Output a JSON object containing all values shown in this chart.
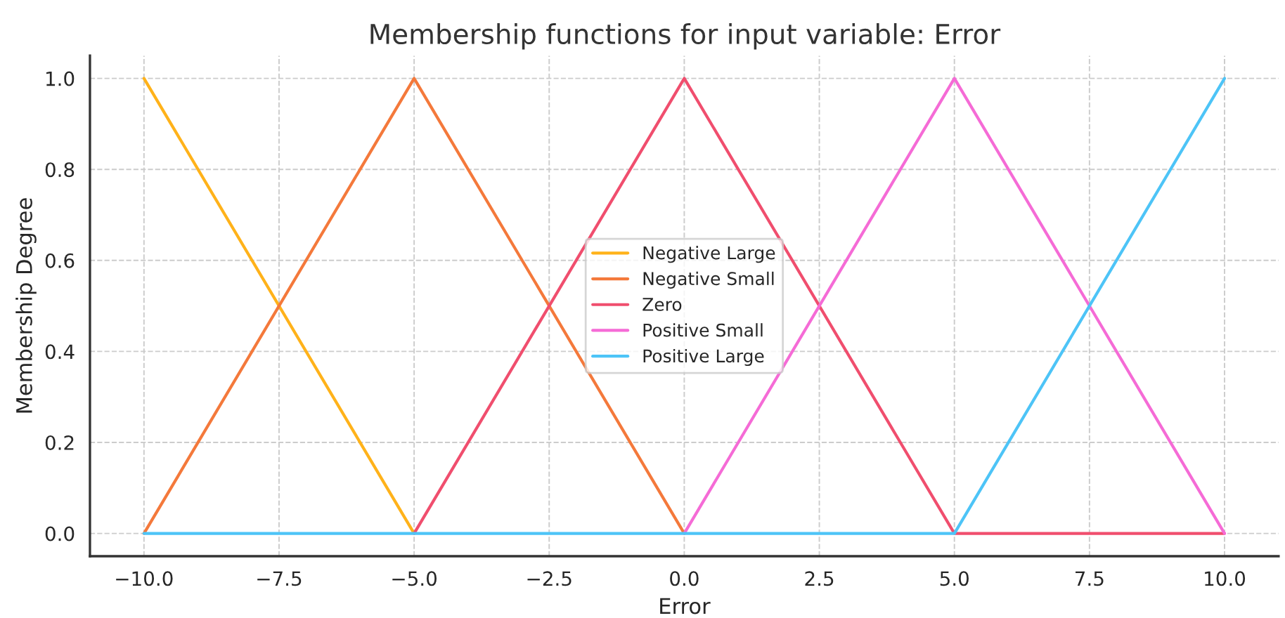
{
  "chart_data": {
    "type": "line",
    "title": "Membership functions for input variable: Error",
    "xlabel": "Error",
    "ylabel": "Membership Degree",
    "x": [
      -10,
      -5,
      0,
      5,
      10
    ],
    "series": [
      {
        "name": "Negative Large",
        "color": "#ffb21a",
        "values": [
          1,
          0,
          null,
          null,
          null
        ]
      },
      {
        "name": "Negative Small",
        "color": "#f4793b",
        "values": [
          0,
          1,
          0,
          null,
          null
        ]
      },
      {
        "name": "Zero",
        "color": "#f04e6e",
        "values": [
          null,
          0,
          1,
          0,
          0
        ]
      },
      {
        "name": "Positive Small",
        "color": "#f56bd6",
        "values": [
          null,
          null,
          0,
          1,
          0
        ]
      },
      {
        "name": "Positive Large",
        "color": "#4dc4f7",
        "values": [
          0,
          0,
          0,
          0,
          1
        ]
      }
    ],
    "xlim": [
      -11,
      11
    ],
    "xticks": [
      {
        "value": -10,
        "label": "−10.0"
      },
      {
        "value": -7.5,
        "label": "−7.5"
      },
      {
        "value": -5,
        "label": "−5.0"
      },
      {
        "value": -2.5,
        "label": "−2.5"
      },
      {
        "value": 0,
        "label": "0.0"
      },
      {
        "value": 2.5,
        "label": "2.5"
      },
      {
        "value": 5,
        "label": "5.0"
      },
      {
        "value": 7.5,
        "label": "7.5"
      },
      {
        "value": 10,
        "label": "10.0"
      }
    ],
    "ylim": [
      -0.05,
      1.05
    ],
    "yticks": [
      {
        "value": 0,
        "label": "0.0"
      },
      {
        "value": 0.2,
        "label": "0.2"
      },
      {
        "value": 0.4,
        "label": "0.4"
      },
      {
        "value": 0.6,
        "label": "0.6"
      },
      {
        "value": 0.8,
        "label": "0.8"
      },
      {
        "value": 1,
        "label": "1.0"
      }
    ],
    "grid": true,
    "legend": "center",
    "marker": "none",
    "line_style": "solid"
  }
}
